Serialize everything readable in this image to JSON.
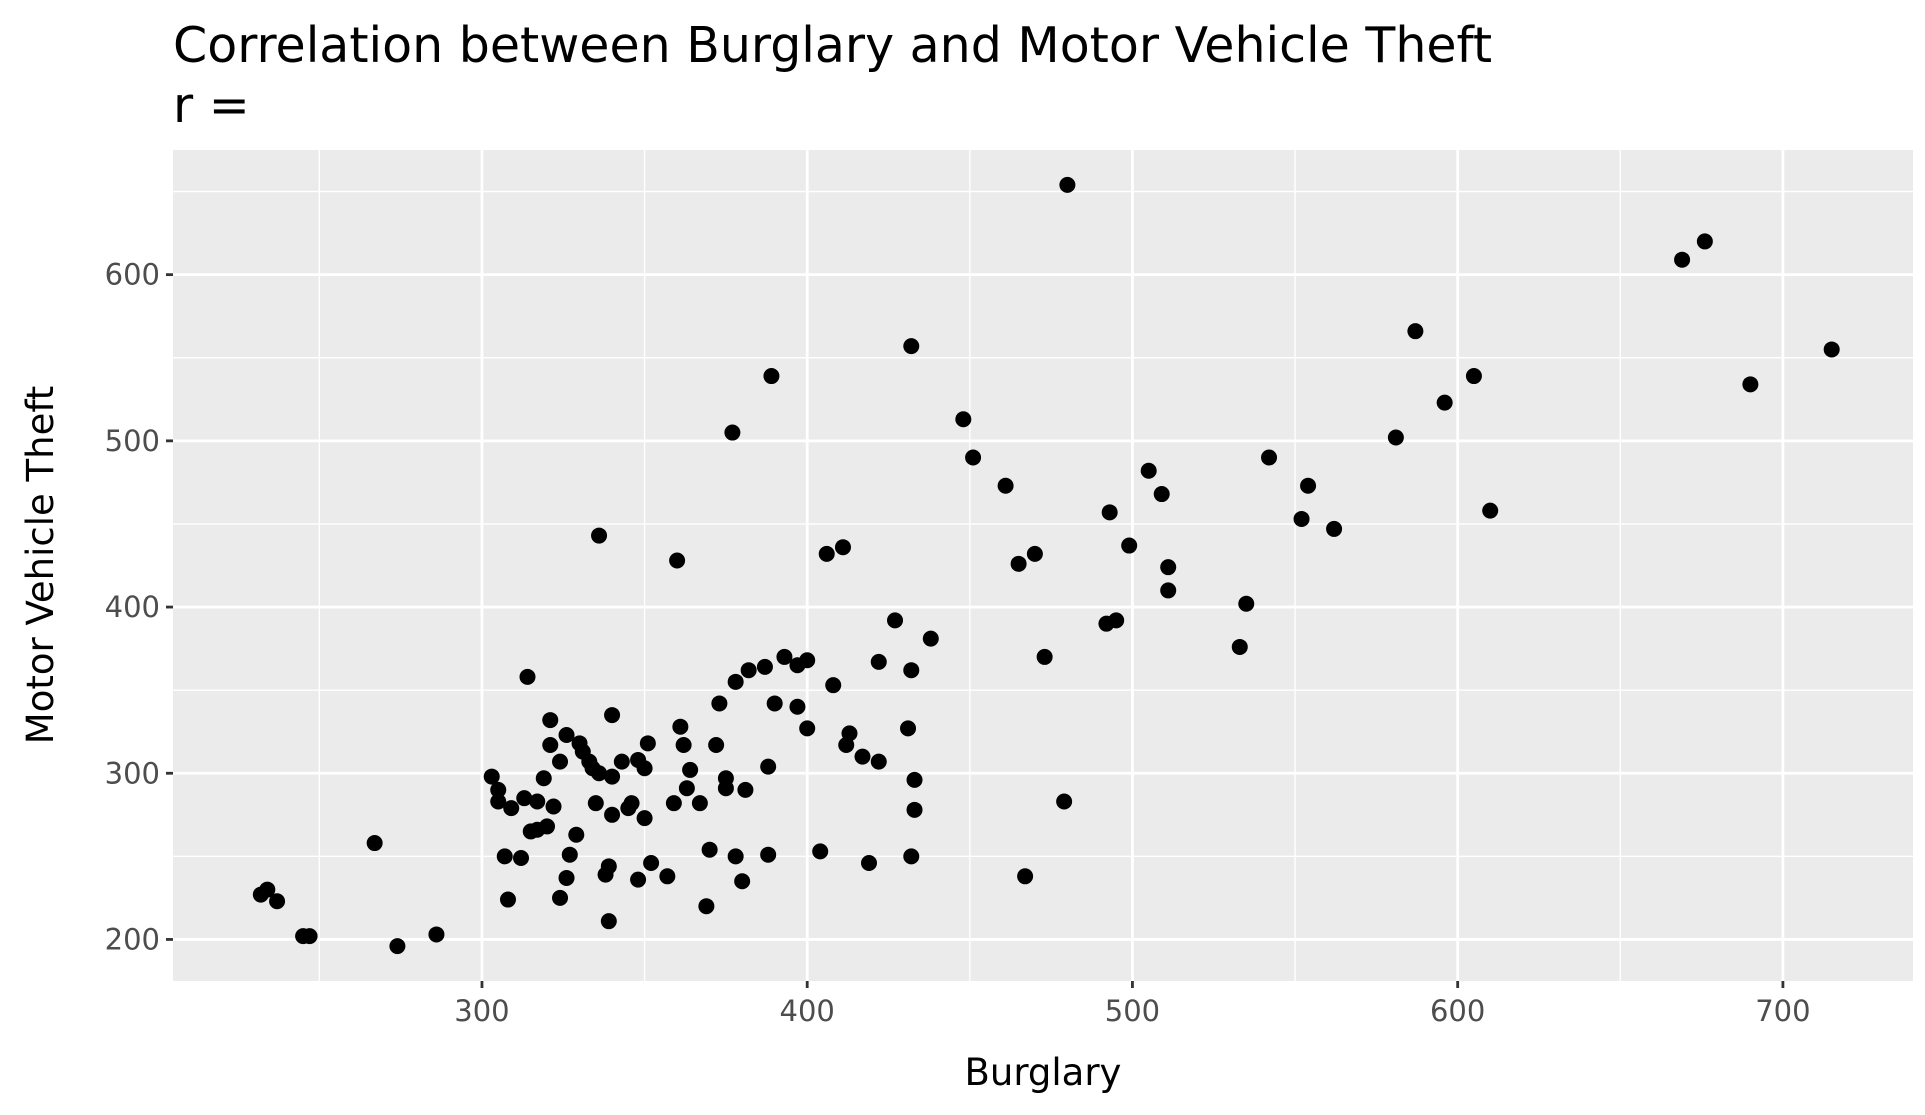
{
  "chart_data": {
    "type": "scatter",
    "title": "Correlation between Burglary and Motor Vehicle Theft",
    "subtitle": "r =",
    "xlabel": "Burglary",
    "ylabel": "Motor Vehicle Theft",
    "xlim": [
      205,
      740
    ],
    "ylim": [
      175,
      675
    ],
    "x_ticks": [
      300,
      400,
      500,
      600,
      700
    ],
    "y_ticks": [
      200,
      300,
      400,
      500,
      600
    ],
    "grid": true,
    "legend": "none",
    "colors": {
      "panel": "#ebebeb",
      "grid": "#ffffff",
      "point": "#000000"
    },
    "points": [
      [
        232,
        227
      ],
      [
        234,
        230
      ],
      [
        237,
        223
      ],
      [
        245,
        202
      ],
      [
        247,
        202
      ],
      [
        267,
        258
      ],
      [
        274,
        196
      ],
      [
        286,
        203
      ],
      [
        303,
        298
      ],
      [
        305,
        290
      ],
      [
        305,
        283
      ],
      [
        307,
        250
      ],
      [
        308,
        224
      ],
      [
        309,
        279
      ],
      [
        312,
        249
      ],
      [
        313,
        285
      ],
      [
        314,
        358
      ],
      [
        315,
        265
      ],
      [
        317,
        283
      ],
      [
        317,
        266
      ],
      [
        319,
        297
      ],
      [
        320,
        268
      ],
      [
        321,
        317
      ],
      [
        321,
        332
      ],
      [
        322,
        280
      ],
      [
        324,
        225
      ],
      [
        324,
        307
      ],
      [
        326,
        323
      ],
      [
        326,
        237
      ],
      [
        327,
        251
      ],
      [
        329,
        263
      ],
      [
        330,
        318
      ],
      [
        331,
        313
      ],
      [
        333,
        307
      ],
      [
        334,
        303
      ],
      [
        335,
        282
      ],
      [
        336,
        300
      ],
      [
        336,
        443
      ],
      [
        338,
        239
      ],
      [
        339,
        244
      ],
      [
        339,
        211
      ],
      [
        340,
        335
      ],
      [
        340,
        298
      ],
      [
        340,
        275
      ],
      [
        343,
        307
      ],
      [
        345,
        279
      ],
      [
        346,
        282
      ],
      [
        348,
        236
      ],
      [
        348,
        308
      ],
      [
        350,
        273
      ],
      [
        350,
        303
      ],
      [
        351,
        318
      ],
      [
        352,
        246
      ],
      [
        357,
        238
      ],
      [
        359,
        282
      ],
      [
        360,
        428
      ],
      [
        361,
        328
      ],
      [
        362,
        317
      ],
      [
        363,
        291
      ],
      [
        364,
        302
      ],
      [
        367,
        282
      ],
      [
        370,
        254
      ],
      [
        369,
        220
      ],
      [
        372,
        317
      ],
      [
        373,
        342
      ],
      [
        375,
        297
      ],
      [
        375,
        291
      ],
      [
        377,
        505
      ],
      [
        378,
        355
      ],
      [
        378,
        250
      ],
      [
        380,
        235
      ],
      [
        381,
        290
      ],
      [
        382,
        362
      ],
      [
        387,
        364
      ],
      [
        388,
        304
      ],
      [
        388,
        251
      ],
      [
        389,
        539
      ],
      [
        390,
        342
      ],
      [
        393,
        370
      ],
      [
        397,
        340
      ],
      [
        397,
        365
      ],
      [
        400,
        368
      ],
      [
        400,
        327
      ],
      [
        404,
        253
      ],
      [
        406,
        432
      ],
      [
        408,
        353
      ],
      [
        411,
        436
      ],
      [
        412,
        317
      ],
      [
        413,
        324
      ],
      [
        417,
        310
      ],
      [
        419,
        246
      ],
      [
        422,
        367
      ],
      [
        422,
        307
      ],
      [
        427,
        392
      ],
      [
        431,
        327
      ],
      [
        432,
        362
      ],
      [
        432,
        557
      ],
      [
        432,
        250
      ],
      [
        433,
        296
      ],
      [
        433,
        278
      ],
      [
        438,
        381
      ],
      [
        448,
        513
      ],
      [
        451,
        490
      ],
      [
        461,
        473
      ],
      [
        465,
        426
      ],
      [
        467,
        238
      ],
      [
        470,
        432
      ],
      [
        473,
        370
      ],
      [
        479,
        283
      ],
      [
        480,
        654
      ],
      [
        492,
        390
      ],
      [
        493,
        457
      ],
      [
        495,
        392
      ],
      [
        499,
        437
      ],
      [
        505,
        482
      ],
      [
        509,
        468
      ],
      [
        511,
        424
      ],
      [
        511,
        410
      ],
      [
        533,
        376
      ],
      [
        535,
        402
      ],
      [
        542,
        490
      ],
      [
        552,
        453
      ],
      [
        554,
        473
      ],
      [
        562,
        447
      ],
      [
        581,
        502
      ],
      [
        587,
        566
      ],
      [
        596,
        523
      ],
      [
        605,
        539
      ],
      [
        610,
        458
      ],
      [
        669,
        609
      ],
      [
        676,
        620
      ],
      [
        690,
        534
      ],
      [
        715,
        555
      ]
    ]
  }
}
